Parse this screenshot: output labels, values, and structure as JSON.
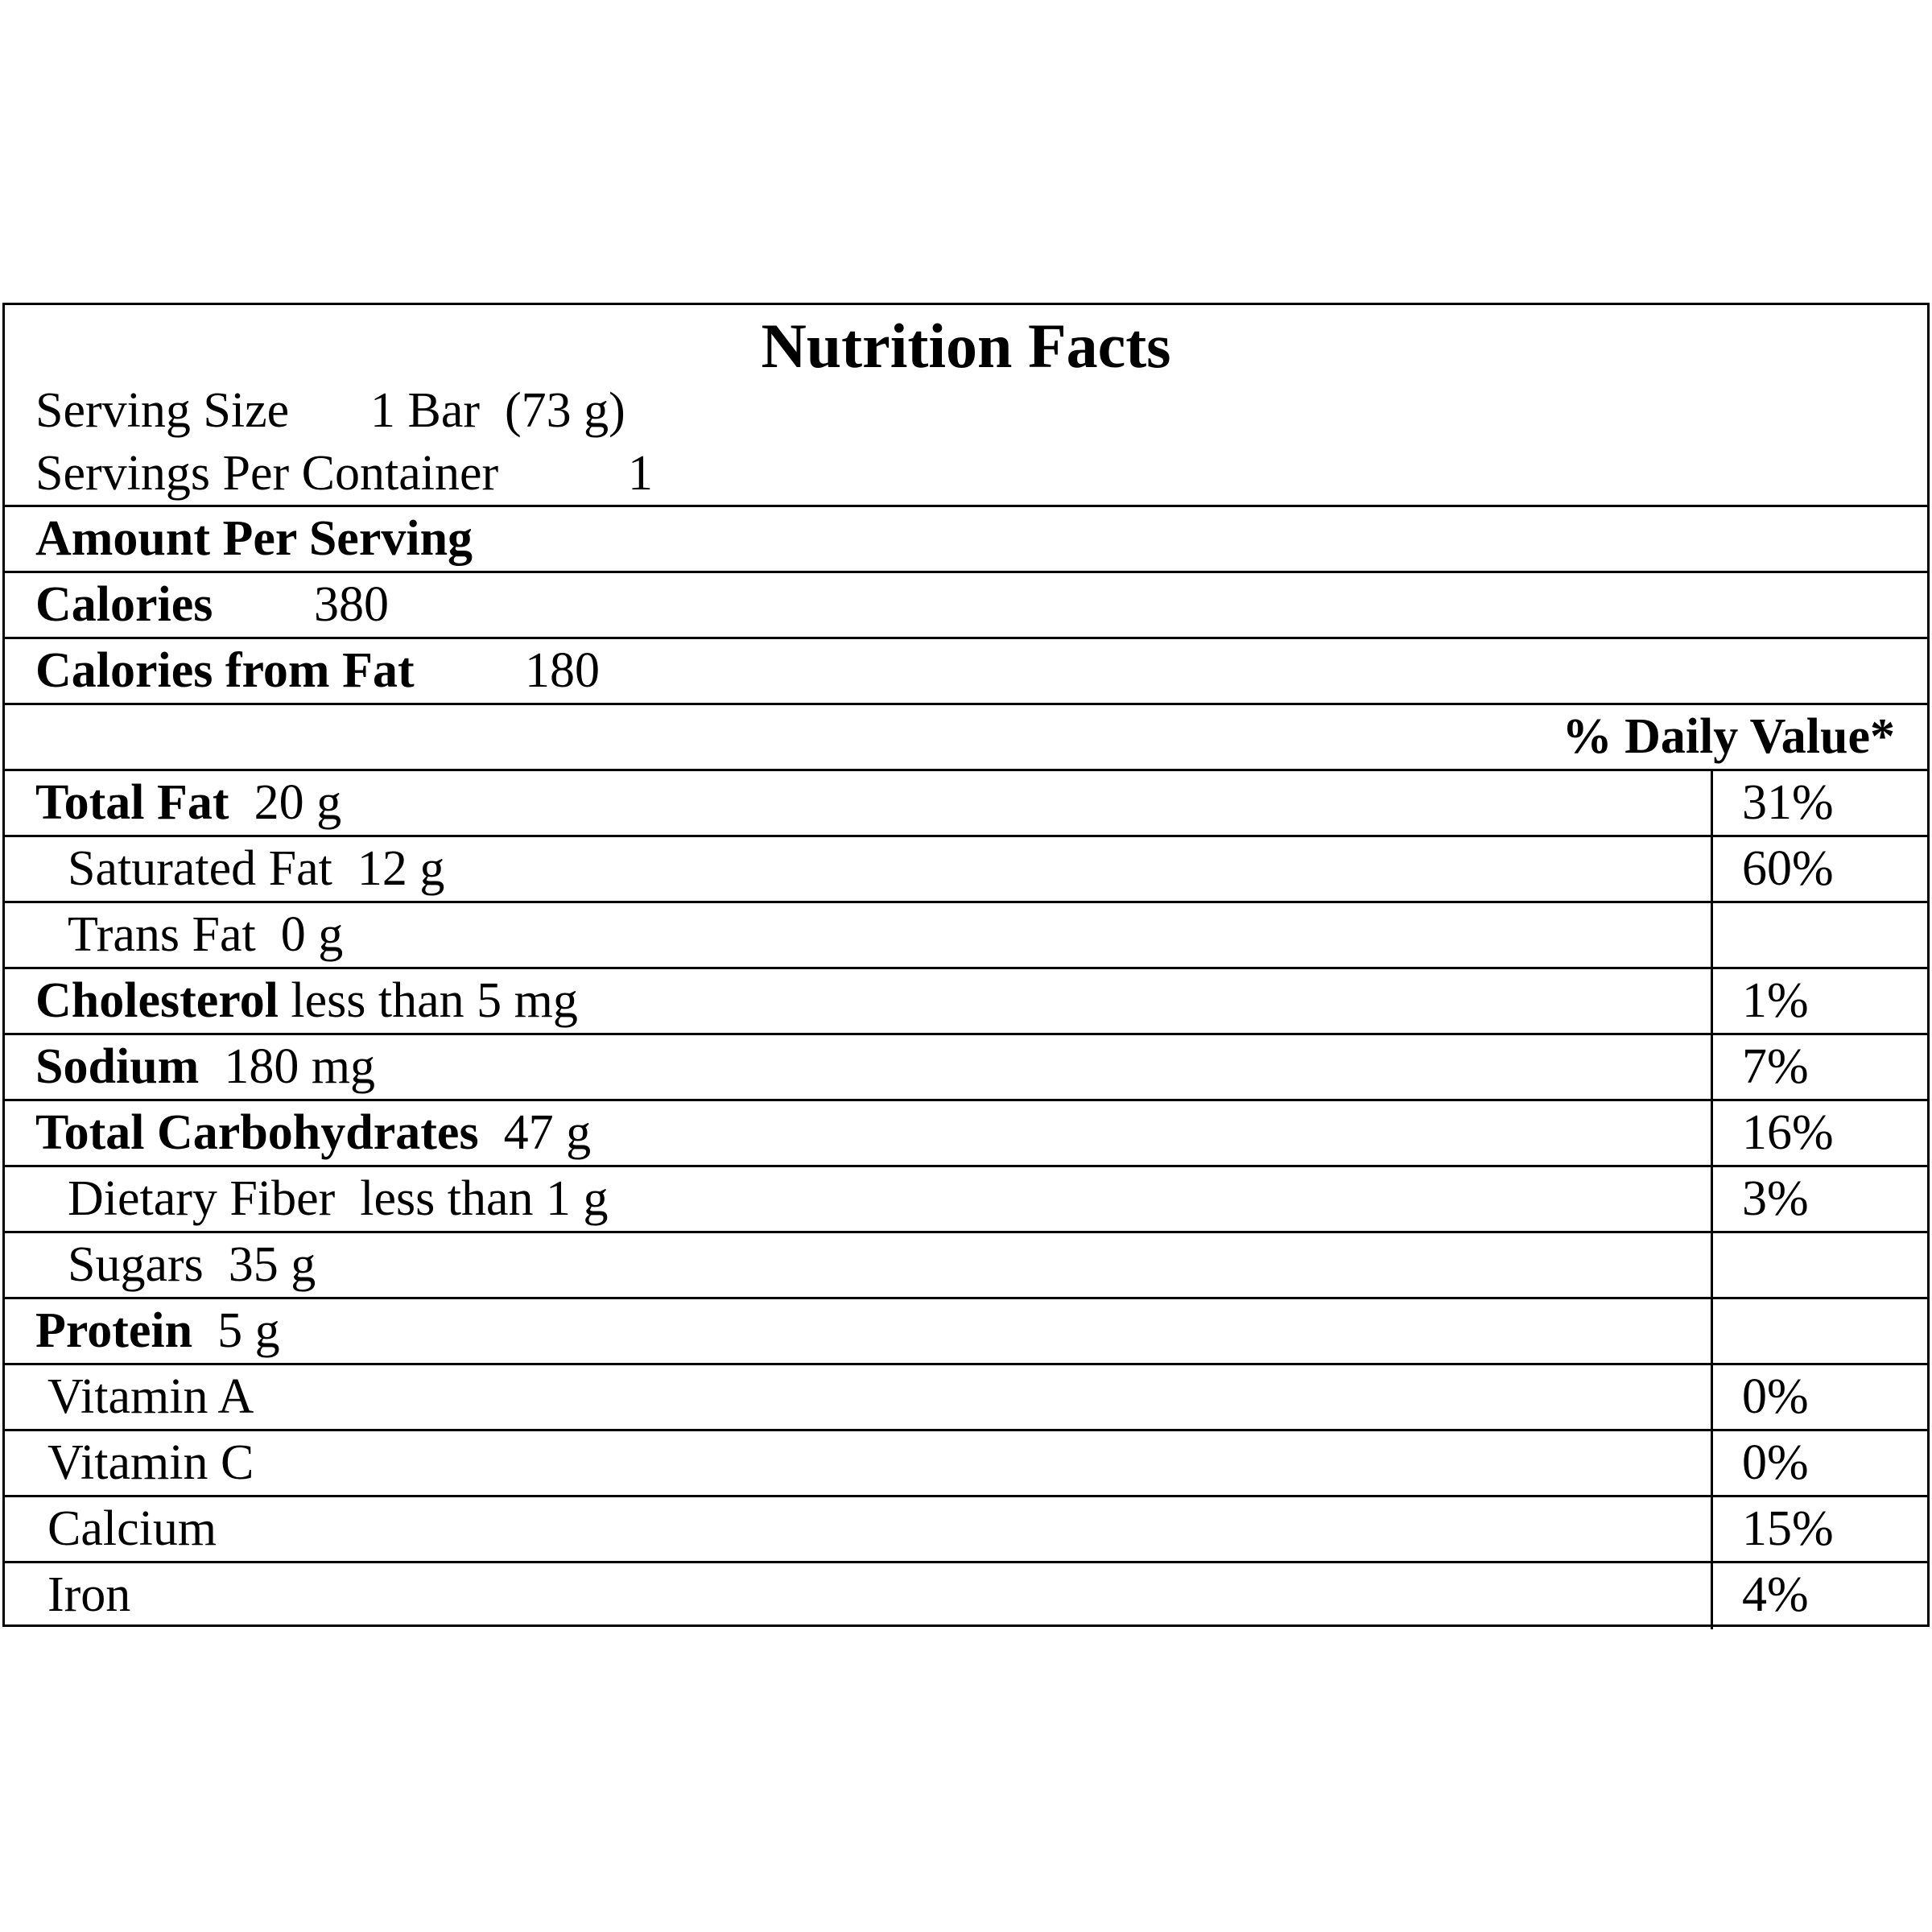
{
  "title": "Nutrition Facts",
  "serving_size": {
    "label": "Serving Size",
    "value": "1 Bar  (73 g)"
  },
  "servings_per_container": {
    "label": "Servings Per Container",
    "value": "1"
  },
  "amount_per_serving": "Amount Per Serving",
  "calories": {
    "label": "Calories",
    "value": "380"
  },
  "calories_from_fat": {
    "label": "Calories from Fat",
    "value": "180"
  },
  "daily_value_header": "% Daily Value*",
  "rows": [
    {
      "name": "Total Fat",
      "amount": "20 g",
      "dv": "31%"
    },
    {
      "name": "Saturated Fat",
      "amount": "12 g",
      "dv": "60%"
    },
    {
      "name": "Trans Fat",
      "amount": "0 g"
    },
    {
      "name": "Cholesterol",
      "amount": "less than 5 mg",
      "dv": "1%"
    },
    {
      "name": "Sodium",
      "amount": "180 mg",
      "dv": "7%"
    },
    {
      "name": "Total Carbohydrates",
      "amount": "47 g",
      "dv": "16%"
    },
    {
      "name": "Dietary Fiber",
      "amount": "less than 1 g",
      "dv": "3%"
    },
    {
      "name": "Sugars",
      "amount": "35 g"
    },
    {
      "name": "Protein",
      "amount": "5 g"
    },
    {
      "name": "Vitamin A",
      "dv": "0%"
    },
    {
      "name": "Vitamin C",
      "dv": "0%"
    },
    {
      "name": "Calcium",
      "dv": "15%"
    },
    {
      "name": "Iron",
      "dv": "4%"
    }
  ]
}
